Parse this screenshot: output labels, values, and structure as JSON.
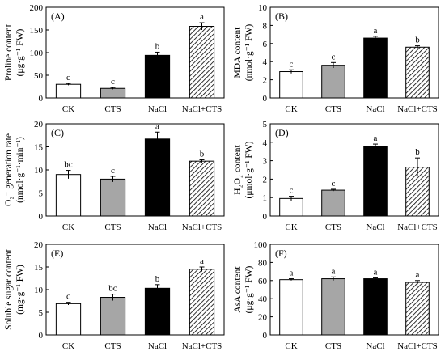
{
  "chart_data": [
    {
      "type": "bar",
      "panel": "(A)",
      "categories": [
        "CK",
        "CTS",
        "NaCl",
        "NaCl+CTS"
      ],
      "values": [
        30,
        21,
        94,
        158
      ],
      "errors": [
        2,
        2,
        7,
        8
      ],
      "letters": [
        "c",
        "c",
        "b",
        "a"
      ],
      "ylabel": [
        "Proline content",
        "(μg·g⁻¹ FW)"
      ],
      "ylim": [
        0,
        200
      ],
      "yticks": [
        0,
        50,
        100,
        150,
        200
      ]
    },
    {
      "type": "bar",
      "panel": "(B)",
      "categories": [
        "CK",
        "CTS",
        "NaCl",
        "NaCl+CTS"
      ],
      "values": [
        2.9,
        3.6,
        6.6,
        5.6
      ],
      "errors": [
        0.2,
        0.3,
        0.2,
        0.15
      ],
      "letters": [
        "c",
        "c",
        "a",
        "b"
      ],
      "ylabel": [
        "MDA content",
        "(nmol·g⁻¹ FW)"
      ],
      "ylim": [
        0,
        10
      ],
      "yticks": [
        0,
        2,
        4,
        6,
        8,
        10
      ]
    },
    {
      "type": "bar",
      "panel": "(C)",
      "categories": [
        "CK",
        "CTS",
        "NaCl",
        "NaCl+CTS"
      ],
      "values": [
        9,
        8,
        16.7,
        11.9
      ],
      "errors": [
        0.9,
        0.6,
        1.5,
        0.3
      ],
      "letters": [
        "bc",
        "c",
        "a",
        "b"
      ],
      "ylabel": [
        "O₂⁻ generation rate",
        "(nmol·g⁻¹·min⁻¹)"
      ],
      "ylim": [
        0,
        20
      ],
      "yticks": [
        0,
        5,
        10,
        15,
        20
      ]
    },
    {
      "type": "bar",
      "panel": "(D)",
      "categories": [
        "CK",
        "CTS",
        "NaCl",
        "NaCl+CTS"
      ],
      "values": [
        0.95,
        1.4,
        3.75,
        2.65
      ],
      "errors": [
        0.12,
        0.05,
        0.15,
        0.5
      ],
      "letters": [
        "c",
        "c",
        "a",
        "b"
      ],
      "ylabel": [
        "H₂O₂ content",
        "(μmol·g⁻¹ FW)"
      ],
      "ylim": [
        0,
        5
      ],
      "yticks": [
        0,
        1,
        2,
        3,
        4,
        5
      ]
    },
    {
      "type": "bar",
      "panel": "(E)",
      "categories": [
        "CK",
        "CTS",
        "NaCl",
        "NaCl+CTS"
      ],
      "values": [
        6.9,
        8.3,
        10.3,
        14.5
      ],
      "errors": [
        0.3,
        0.7,
        0.8,
        0.5
      ],
      "letters": [
        "c",
        "bc",
        "b",
        "a"
      ],
      "ylabel": [
        "Soluble sugar content",
        "(mg·g⁻¹ FW)"
      ],
      "ylim": [
        0,
        20
      ],
      "yticks": [
        0,
        5,
        10,
        15,
        20
      ]
    },
    {
      "type": "bar",
      "panel": "(F)",
      "categories": [
        "CK",
        "CTS",
        "NaCl",
        "NaCl+CTS"
      ],
      "values": [
        61,
        62,
        62,
        58
      ],
      "errors": [
        1,
        2,
        1,
        2
      ],
      "letters": [
        "a",
        "a",
        "a",
        "a"
      ],
      "ylabel": [
        "AsA content",
        "(μg·g⁻¹ FW)"
      ],
      "ylim": [
        0,
        100
      ],
      "yticks": [
        0,
        20,
        40,
        60,
        80,
        100
      ]
    }
  ],
  "colors": {
    "CK": "#ffffff",
    "CTS": "#a6a6a6",
    "NaCl": "#000000",
    "NaCl+CTS": "hatch",
    "stroke": "#000000"
  }
}
